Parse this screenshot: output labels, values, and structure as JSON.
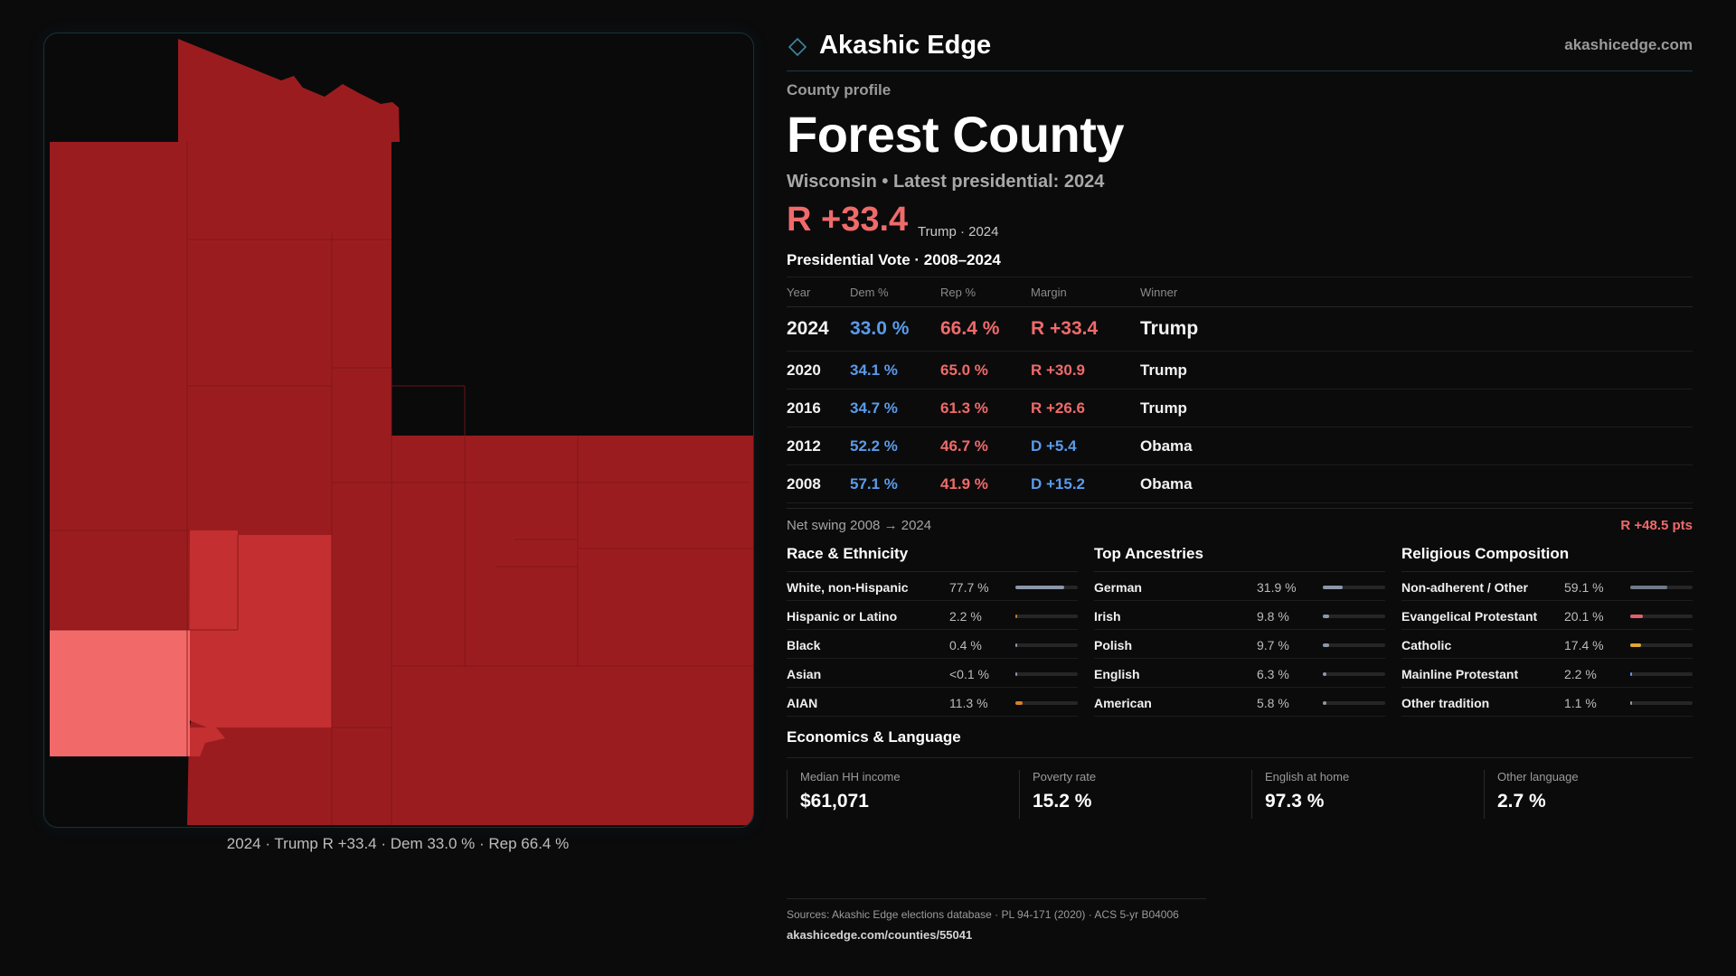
{
  "brand": {
    "name": "Akashic Edge",
    "url": "akashicedge.com"
  },
  "profile": {
    "eyebrow": "County profile",
    "county": "Forest County",
    "subline": "Wisconsin • Latest presidential: 2024",
    "margin": "R +33.4",
    "margin_meta": "Trump · 2024"
  },
  "votes": {
    "title": "Presidential Vote · 2008–2024",
    "headers": {
      "year": "Year",
      "dem": "Dem %",
      "rep": "Rep %",
      "margin": "Margin",
      "winner": "Winner"
    },
    "rows": [
      {
        "year": "2024",
        "dem": "33.0 %",
        "rep": "66.4 %",
        "margin": "R +33.4",
        "winner": "Trump"
      },
      {
        "year": "2020",
        "dem": "34.1 %",
        "rep": "65.0 %",
        "margin": "R +30.9",
        "winner": "Trump"
      },
      {
        "year": "2016",
        "dem": "34.7 %",
        "rep": "61.3 %",
        "margin": "R +26.6",
        "winner": "Trump"
      },
      {
        "year": "2012",
        "dem": "52.2 %",
        "rep": "46.7 %",
        "margin": "D +5.4",
        "winner": "Obama"
      },
      {
        "year": "2008",
        "dem": "57.1 %",
        "rep": "41.9 %",
        "margin": "D +15.2",
        "winner": "Obama"
      }
    ],
    "swing_label": "Net swing 2008 → 2024",
    "swing_value": "R +48.5 pts"
  },
  "race": {
    "title": "Race & Ethnicity",
    "items": [
      {
        "label": "White, non-Hispanic",
        "value": "77.7 %",
        "share": 0.777,
        "color": "#8b98aa"
      },
      {
        "label": "Hispanic or Latino",
        "value": "2.2 %",
        "share": 0.022,
        "color": "#c47a2a"
      },
      {
        "label": "Black",
        "value": "0.4 %",
        "share": 0.004,
        "color": "#8b98aa"
      },
      {
        "label": "Asian",
        "value": "<0.1 %",
        "share": 0.0,
        "color": "#8b98aa"
      },
      {
        "label": "AIAN",
        "value": "11.3 %",
        "share": 0.113,
        "color": "#d4812a"
      }
    ]
  },
  "ancestry": {
    "title": "Top Ancestries",
    "items": [
      {
        "label": "German",
        "value": "31.9 %",
        "share": 0.319,
        "color": "#8b98aa"
      },
      {
        "label": "Irish",
        "value": "9.8 %",
        "share": 0.098,
        "color": "#8b98aa"
      },
      {
        "label": "Polish",
        "value": "9.7 %",
        "share": 0.097,
        "color": "#8b98aa"
      },
      {
        "label": "English",
        "value": "6.3 %",
        "share": 0.063,
        "color": "#8b98aa"
      },
      {
        "label": "American",
        "value": "5.8 %",
        "share": 0.058,
        "color": "#8b98aa"
      }
    ]
  },
  "religion": {
    "title": "Religious Composition",
    "items": [
      {
        "label": "Non-adherent / Other",
        "value": "59.1 %",
        "share": 0.591,
        "color": "#707a88"
      },
      {
        "label": "Evangelical Protestant",
        "value": "20.1 %",
        "share": 0.201,
        "color": "#e0606a"
      },
      {
        "label": "Catholic",
        "value": "17.4 %",
        "share": 0.174,
        "color": "#e2a634"
      },
      {
        "label": "Mainline Protestant",
        "value": "2.2 %",
        "share": 0.022,
        "color": "#5a9bea"
      },
      {
        "label": "Other tradition",
        "value": "1.1 %",
        "share": 0.011,
        "color": "#8b98aa"
      }
    ]
  },
  "economics": {
    "title": "Economics & Language",
    "items": [
      {
        "label": "Median HH income",
        "value": "$61,071"
      },
      {
        "label": "Poverty rate",
        "value": "15.2 %"
      },
      {
        "label": "English at home",
        "value": "97.3 %"
      },
      {
        "label": "Other language",
        "value": "2.7 %"
      }
    ]
  },
  "map": {
    "caption": "2024 · Trump R +33.4 · Dem 33.0 % · Rep 66.4 %",
    "colors": {
      "strong_r": "#9b1c1f",
      "mid_r": "#c42f31",
      "lean_r": "#f26969",
      "background": "#0a0a0b"
    }
  },
  "sources": {
    "line1": "Sources: Akashic Edge elections database · PL 94-171 (2020) · ACS 5-yr B04006",
    "line2": "akashicedge.com/counties/55041"
  }
}
